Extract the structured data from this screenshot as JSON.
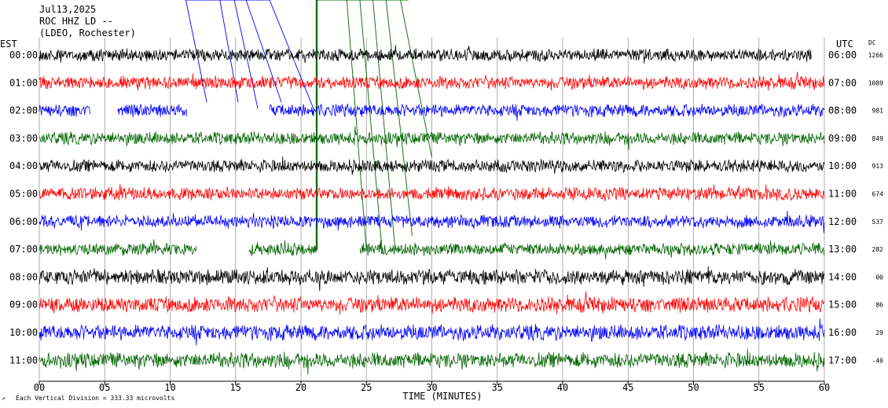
{
  "chart_data": {
    "type": "line",
    "title_lines": [
      "Jul13,2025",
      "ROC HHZ LD --",
      "(LDEO, Rochester)"
    ],
    "left_axis_title": "EST",
    "right_axis_title": "UTC",
    "dc_title": "DC",
    "xlabel": "TIME (MINUTES)",
    "x_ticks": [
      "00",
      "05",
      "10",
      "15",
      "20",
      "25",
      "30",
      "35",
      "40",
      "45",
      "50",
      "55",
      "60"
    ],
    "xlim": [
      0,
      60
    ],
    "footnote": "Each Vertical Division =  333.33 microvolts",
    "trace_colors": [
      "#000000",
      "#ff0000",
      "#0000ff",
      "#006400"
    ],
    "rows": [
      {
        "est": "00:00",
        "utc": "06:00",
        "dc": "1266",
        "end_min": 59
      },
      {
        "est": "01:00",
        "utc": "07:00",
        "dc": "1089",
        "end_min": 60
      },
      {
        "est": "02:00",
        "utc": "08:00",
        "dc": "981",
        "end_min": 60
      },
      {
        "est": "03:00",
        "utc": "09:00",
        "dc": "849",
        "end_min": 60
      },
      {
        "est": "04:00",
        "utc": "10:00",
        "dc": "913",
        "end_min": 60
      },
      {
        "est": "05:00",
        "utc": "11:00",
        "dc": "674",
        "end_min": 60
      },
      {
        "est": "06:00",
        "utc": "12:00",
        "dc": "537",
        "end_min": 60
      },
      {
        "est": "07:00",
        "utc": "13:00",
        "dc": "282",
        "end_min": 60
      },
      {
        "est": "08:00",
        "utc": "14:00",
        "dc": "00",
        "end_min": 60
      },
      {
        "est": "09:00",
        "utc": "15:00",
        "dc": "86",
        "end_min": 60
      },
      {
        "est": "10:00",
        "utc": "16:00",
        "dc": "29",
        "end_min": 60
      },
      {
        "est": "11:00",
        "utc": "17:00",
        "dc": "-40",
        "end_min": 60
      }
    ]
  }
}
